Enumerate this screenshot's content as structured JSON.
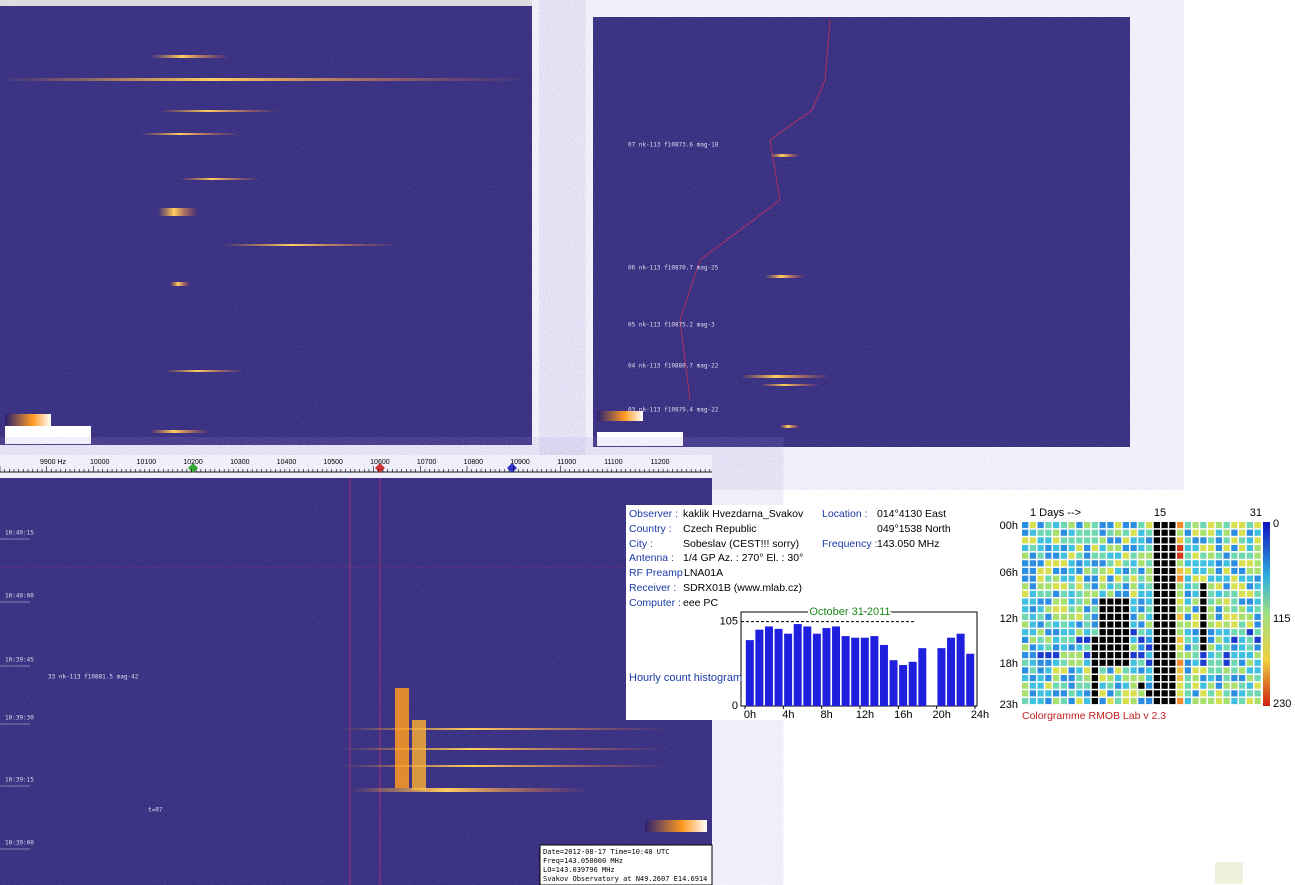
{
  "top_right_spectrogram": {
    "annotations": [
      "07 nk-113 f10873.6 mag-18",
      "06 nk-113 f10870.7 mag-25",
      "05 nk-113 f10875.2 mag-3",
      "04 nk-113 f10880.7 mag-22",
      "03 nk-113 f10879.4 mag-22"
    ]
  },
  "spectrogram": {
    "freq_labels": [
      "9900 Hz",
      "10000",
      "10100",
      "10200",
      "10300",
      "10400",
      "10500",
      "10600",
      "10700",
      "10800",
      "10900",
      "11000",
      "11100",
      "11200"
    ],
    "time_labels": [
      "10:40:15",
      "10:40:00",
      "10:39:45",
      "10:39:30",
      "10:39:15",
      "10:39:00"
    ],
    "annotations": [
      "33 nk-113 f10881.5 mag-42",
      "t=07"
    ],
    "footer": [
      "Date=2012-08-17 Time=10:40 UTC",
      "Freq=143.050000 MHz",
      "LO=143.039796 MHz",
      "Svakov Observatory at N49.2607 E14.6914"
    ]
  },
  "station_info": {
    "fields": [
      {
        "label": "Observer :",
        "value": "kaklik Hvezdarna_Svakov"
      },
      {
        "label": "Country :",
        "value": "Czech Republic"
      },
      {
        "label": "City :",
        "value": "Sobeslav (CEST!!! sorry)"
      },
      {
        "label": "Antenna :",
        "value": "1/4 GP     Az. : 270°   El. : 30°"
      },
      {
        "label": "RF Preamp",
        "value": "LNA01A"
      },
      {
        "label": "Receiver :",
        "value": "SDRX01B (www.mlab.cz)"
      },
      {
        "label": "Computer :",
        "value": "eee PC"
      },
      {
        "label": "Location :",
        "value": "014°4130 East"
      },
      {
        "label": "",
        "value": "049°1538 North"
      },
      {
        "label": "Frequency :",
        "value": "143.050 MHz"
      }
    ]
  },
  "chart_data": {
    "type": "bar",
    "title": "October 31 2011",
    "y_label": "Hourly count histogram",
    "color": "#1f1fe0",
    "x": [
      0,
      1,
      2,
      3,
      4,
      5,
      6,
      7,
      8,
      9,
      10,
      11,
      12,
      13,
      14,
      15,
      16,
      17,
      18,
      19,
      20,
      21,
      22,
      23
    ],
    "values": [
      82,
      95,
      99,
      96,
      90,
      102,
      99,
      90,
      97,
      99,
      87,
      85,
      85,
      87,
      76,
      57,
      51,
      55,
      72,
      0,
      72,
      85,
      90,
      65
    ],
    "xlim": [
      0,
      24
    ],
    "xticks": [
      {
        "value": 0,
        "label": "0h"
      },
      {
        "value": 4,
        "label": "4h"
      },
      {
        "value": 8,
        "label": "8h"
      },
      {
        "value": 12,
        "label": "12h"
      },
      {
        "value": 16,
        "label": "16h"
      },
      {
        "value": 20,
        "label": "20h"
      },
      {
        "value": 24,
        "label": "24h"
      }
    ],
    "ylim": [
      0,
      117
    ],
    "yticks": [
      0,
      105
    ]
  },
  "colorgramme": {
    "day_labels": [
      "1  Days -->",
      "15",
      "31"
    ],
    "hour_labels": [
      "00h",
      "06h",
      "12h",
      "18h",
      "23h"
    ],
    "scale_labels": [
      "0",
      "115",
      "230"
    ],
    "caption": "Colorgramme RMOB Lab v 2.3"
  }
}
